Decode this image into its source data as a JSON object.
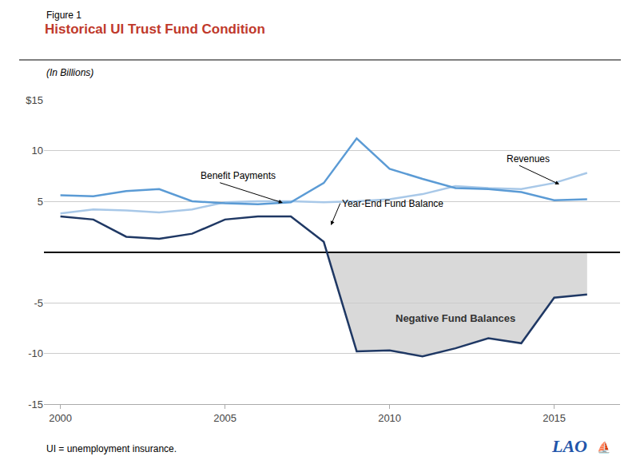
{
  "chart_data": {
    "type": "line",
    "title": "Historical UI Trust Fund Condition",
    "subtitle": "(In Billions)",
    "annotations": [
      "Figure 1",
      "Benefit Payments",
      "Year-End Fund Balance",
      "Revenues",
      "Negative Fund Balances",
      "UI = unemployment insurance.",
      "LAO",
      "⛵"
    ],
    "x": [
      2000,
      2001,
      2002,
      2003,
      2004,
      2005,
      2006,
      2007,
      2008,
      2009,
      2010,
      2011,
      2012,
      2013,
      2014,
      2015,
      2016
    ],
    "series": [
      {
        "name": "Revenues",
        "color": "#a8c8e8",
        "values": [
          3.8,
          4.2,
          4.1,
          3.9,
          4.2,
          4.9,
          5.0,
          5.0,
          4.9,
          5.0,
          5.2,
          5.7,
          6.5,
          6.3,
          6.2,
          6.8,
          7.8
        ]
      },
      {
        "name": "Benefit Payments",
        "color": "#5b9bd5",
        "values": [
          5.6,
          5.5,
          6.0,
          6.2,
          5.0,
          4.8,
          4.7,
          4.9,
          6.8,
          11.2,
          8.2,
          7.2,
          6.3,
          6.2,
          5.9,
          5.1,
          5.2
        ]
      },
      {
        "name": "Year-End Fund Balance",
        "color": "#1f3864",
        "values": [
          3.5,
          3.2,
          1.5,
          1.3,
          1.8,
          3.2,
          3.5,
          3.5,
          1.0,
          -9.8,
          -9.7,
          -10.3,
          -9.5,
          -8.5,
          -9.0,
          -4.5,
          -4.2
        ]
      }
    ],
    "xlim": [
      1999.5,
      2017.0
    ],
    "xticks": [
      2000,
      2005,
      2010,
      2015
    ],
    "ylim": [
      -15,
      15
    ],
    "yticks": [
      -15,
      -10,
      -5,
      5,
      10,
      {
        "value": 15,
        "label": "$15"
      }
    ],
    "grid": "y"
  }
}
